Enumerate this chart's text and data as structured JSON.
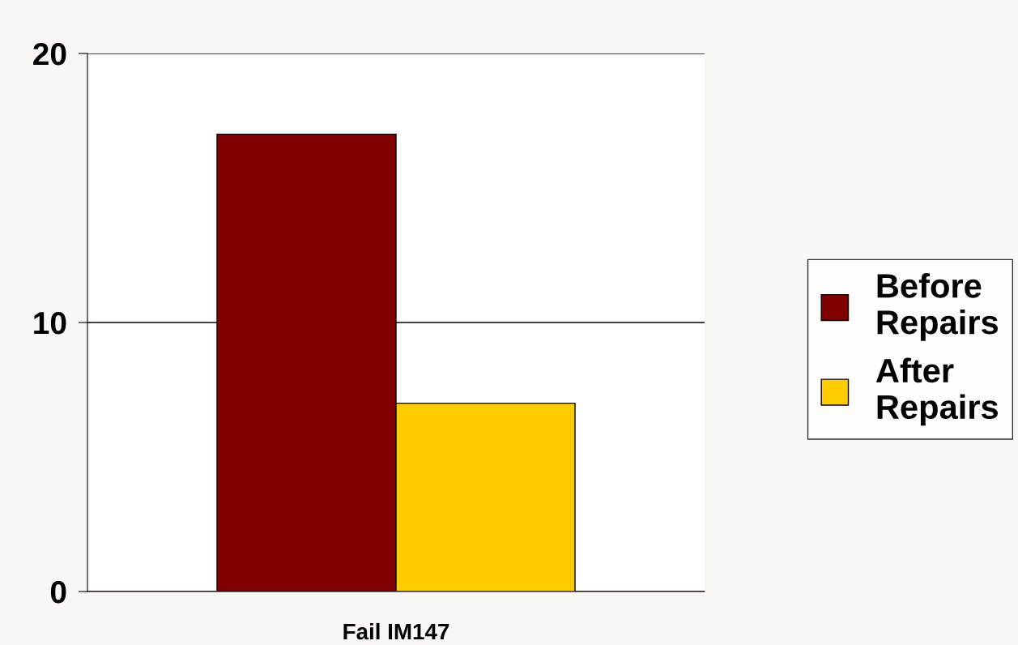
{
  "chart_data": {
    "type": "bar",
    "categories": [
      "Fail IM147"
    ],
    "series": [
      {
        "name": "Before Repairs",
        "color": "#800000",
        "values": [
          17
        ]
      },
      {
        "name": "After Repairs",
        "color": "#ffcc00",
        "values": [
          7
        ]
      }
    ],
    "ylim": [
      0,
      20
    ],
    "yticks": [
      0,
      10,
      20
    ],
    "grid": "y",
    "legend": "right"
  }
}
